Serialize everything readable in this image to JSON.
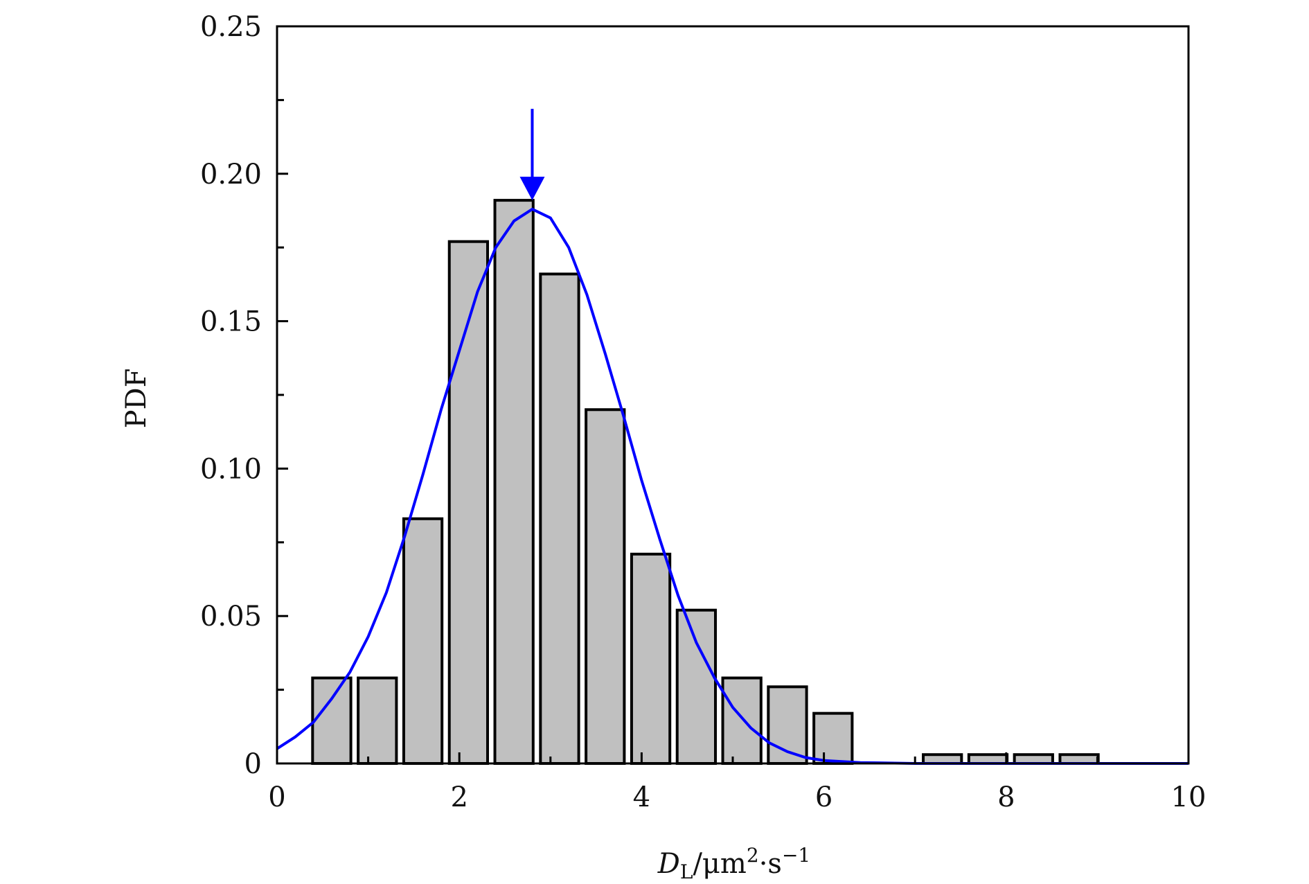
{
  "chart_data": {
    "type": "bar",
    "xlim": [
      0,
      10
    ],
    "ylim": [
      0,
      0.25
    ],
    "x_ticks": [
      "0",
      "2",
      "4",
      "6",
      "8",
      "10"
    ],
    "y_ticks": [
      "0",
      "0.05",
      "0.10",
      "0.15",
      "0.20",
      "0.25"
    ],
    "ylabel": "PDF",
    "xlabel": {
      "main": "D",
      "sub": "L",
      "mid": "/μm",
      "sup1": "2",
      "dot": "·s",
      "sup2": "−1"
    },
    "bar_width": 0.42,
    "bars": [
      {
        "x": 0.6,
        "value": 0.029
      },
      {
        "x": 1.1,
        "value": 0.029
      },
      {
        "x": 1.6,
        "value": 0.083
      },
      {
        "x": 2.1,
        "value": 0.177
      },
      {
        "x": 2.6,
        "value": 0.191
      },
      {
        "x": 3.1,
        "value": 0.166
      },
      {
        "x": 3.6,
        "value": 0.12
      },
      {
        "x": 4.1,
        "value": 0.071
      },
      {
        "x": 4.6,
        "value": 0.052
      },
      {
        "x": 5.1,
        "value": 0.029
      },
      {
        "x": 5.6,
        "value": 0.026
      },
      {
        "x": 6.1,
        "value": 0.017
      },
      {
        "x": 7.3,
        "value": 0.003
      },
      {
        "x": 7.8,
        "value": 0.003
      },
      {
        "x": 8.3,
        "value": 0.003
      },
      {
        "x": 8.8,
        "value": 0.003
      }
    ],
    "fit_curve": {
      "color": "#0000ff",
      "points": [
        [
          0,
          0.005
        ],
        [
          0.2,
          0.009
        ],
        [
          0.4,
          0.014
        ],
        [
          0.6,
          0.022
        ],
        [
          0.8,
          0.031
        ],
        [
          1.0,
          0.043
        ],
        [
          1.2,
          0.058
        ],
        [
          1.4,
          0.077
        ],
        [
          1.6,
          0.098
        ],
        [
          1.8,
          0.12
        ],
        [
          2.0,
          0.14
        ],
        [
          2.2,
          0.16
        ],
        [
          2.4,
          0.175
        ],
        [
          2.6,
          0.184
        ],
        [
          2.8,
          0.188
        ],
        [
          3.0,
          0.185
        ],
        [
          3.2,
          0.175
        ],
        [
          3.4,
          0.159
        ],
        [
          3.6,
          0.139
        ],
        [
          3.8,
          0.118
        ],
        [
          4.0,
          0.096
        ],
        [
          4.2,
          0.076
        ],
        [
          4.4,
          0.057
        ],
        [
          4.6,
          0.041
        ],
        [
          4.8,
          0.029
        ],
        [
          5.0,
          0.019
        ],
        [
          5.2,
          0.012
        ],
        [
          5.4,
          0.007
        ],
        [
          5.6,
          0.004
        ],
        [
          5.8,
          0.002
        ],
        [
          6.0,
          0.001
        ],
        [
          6.4,
          0.0003
        ],
        [
          7.0,
          0.0
        ],
        [
          10.0,
          0.0
        ]
      ]
    },
    "peak_arrow": {
      "x": 2.8,
      "from": 0.222,
      "to": 0.191,
      "color": "#0000ff"
    },
    "bar_fill": "#c0c0c0",
    "bar_stroke": "#000000"
  }
}
